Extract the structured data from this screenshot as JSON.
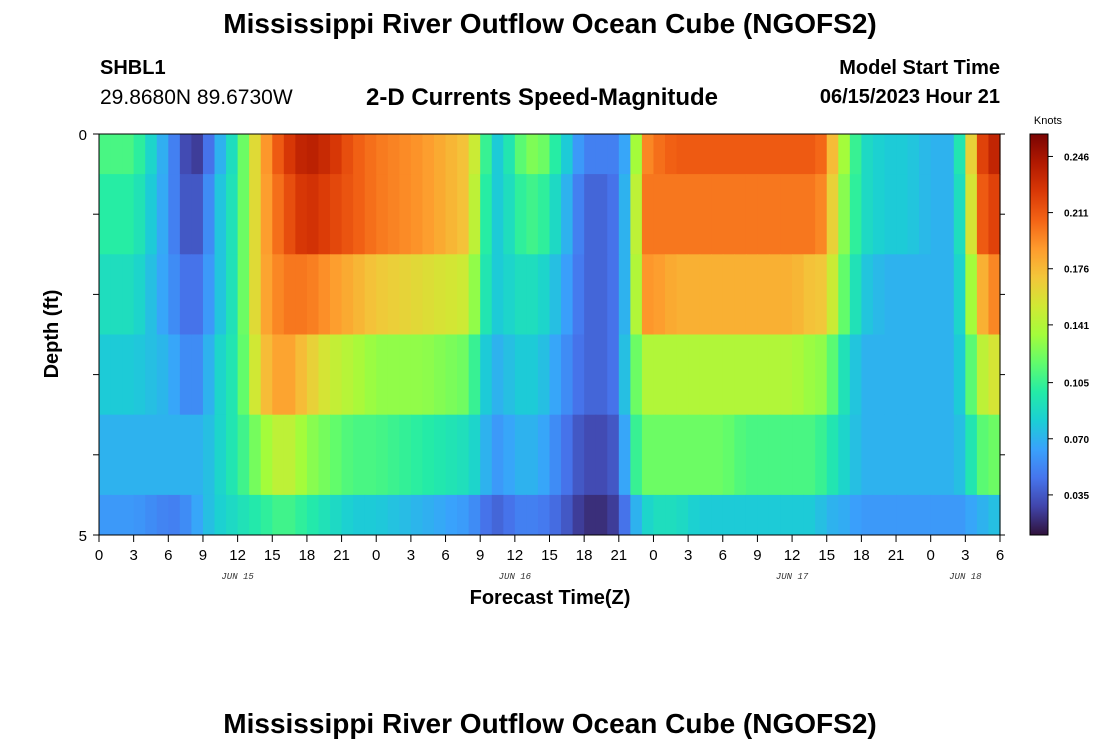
{
  "header": {
    "title": "Mississippi River Outflow Ocean Cube (NGOFS2)",
    "station_id": "SHBL1",
    "station_coords": "29.8680N  89.6730W",
    "subtitle": "2-D Currents Speed-Magnitude",
    "start_label": "Model Start Time",
    "start_value": "06/15/2023 Hour 21"
  },
  "footer": {
    "title": "Mississippi River Outflow Ocean Cube (NGOFS2)"
  },
  "chart_data": {
    "type": "heatmap",
    "xlabel": "Forecast Time(Z)",
    "ylabel": "Depth (ft)",
    "x_tick_labels": [
      "0",
      "3",
      "6",
      "9",
      "12",
      "15",
      "18",
      "21",
      "0",
      "3",
      "6",
      "9",
      "12",
      "15",
      "18",
      "21",
      "0",
      "3",
      "6",
      "9",
      "12",
      "15",
      "18",
      "21",
      "0",
      "3",
      "6"
    ],
    "date_labels": [
      {
        "text": "JUN 15",
        "hour": 12
      },
      {
        "text": "JUN 16",
        "hour": 36
      },
      {
        "text": "JUN 17",
        "hour": 60
      },
      {
        "text": "JUN 18",
        "hour": 75
      }
    ],
    "x_range_hours": [
      0,
      78
    ],
    "y_tick_labels": [
      "0",
      "5"
    ],
    "ylim": [
      0,
      5
    ],
    "colorbar": {
      "unit": "Knots",
      "range": [
        0.01,
        0.26
      ],
      "tick_labels": [
        "0.246",
        "0.211",
        "0.176",
        "0.141",
        "0.105",
        "0.070",
        "0.035"
      ],
      "tick_values": [
        0.246,
        0.211,
        0.176,
        0.141,
        0.105,
        0.07,
        0.035
      ],
      "colormap": [
        "#30123b",
        "#4145ab",
        "#4675ed",
        "#39a2fc",
        "#1bcfd4",
        "#24eca6",
        "#61fc6c",
        "#a4fc3b",
        "#d1e834",
        "#f3c63a",
        "#fe9b2d",
        "#f36315",
        "#d93806",
        "#b11901",
        "#7a0403"
      ]
    },
    "layer_depths_ft": [
      0,
      0.5,
      1.5,
      2.5,
      3.5,
      4.5,
      5
    ],
    "time_hours": [
      0,
      3,
      6,
      7,
      8,
      9,
      10,
      12,
      14,
      16,
      18,
      20,
      22,
      24,
      28,
      32,
      33,
      34,
      35,
      36,
      38,
      40,
      42,
      44,
      45,
      46,
      47,
      48,
      50,
      52,
      54,
      56,
      58,
      60,
      62,
      63,
      64,
      66,
      68,
      70,
      72,
      74,
      75,
      76,
      77,
      78
    ],
    "speed_knots": [
      [
        0.11,
        0.11,
        0.06,
        0.04,
        0.02,
        0.03,
        0.06,
        0.1,
        0.18,
        0.22,
        0.24,
        0.23,
        0.21,
        0.2,
        0.19,
        0.17,
        0.13,
        0.08,
        0.08,
        0.11,
        0.13,
        0.09,
        0.05,
        0.05,
        0.05,
        0.08,
        0.19,
        0.2,
        0.21,
        0.21,
        0.21,
        0.21,
        0.21,
        0.21,
        0.21,
        0.2,
        0.15,
        0.09,
        0.08,
        0.08,
        0.07,
        0.07,
        0.12,
        0.21,
        0.23,
        0.24
      ],
      [
        0.1,
        0.1,
        0.06,
        0.04,
        0.03,
        0.04,
        0.07,
        0.1,
        0.18,
        0.21,
        0.23,
        0.22,
        0.21,
        0.2,
        0.19,
        0.17,
        0.12,
        0.08,
        0.08,
        0.1,
        0.11,
        0.08,
        0.04,
        0.04,
        0.05,
        0.09,
        0.2,
        0.2,
        0.2,
        0.2,
        0.2,
        0.2,
        0.2,
        0.2,
        0.2,
        0.19,
        0.14,
        0.09,
        0.08,
        0.08,
        0.07,
        0.07,
        0.11,
        0.2,
        0.22,
        0.22
      ],
      [
        0.09,
        0.09,
        0.06,
        0.05,
        0.04,
        0.05,
        0.07,
        0.1,
        0.18,
        0.2,
        0.2,
        0.19,
        0.18,
        0.17,
        0.16,
        0.15,
        0.11,
        0.08,
        0.08,
        0.09,
        0.09,
        0.07,
        0.04,
        0.04,
        0.05,
        0.09,
        0.19,
        0.19,
        0.18,
        0.18,
        0.18,
        0.18,
        0.18,
        0.18,
        0.17,
        0.17,
        0.13,
        0.08,
        0.07,
        0.07,
        0.07,
        0.07,
        0.1,
        0.17,
        0.19,
        0.2
      ],
      [
        0.08,
        0.08,
        0.07,
        0.06,
        0.05,
        0.06,
        0.08,
        0.1,
        0.17,
        0.19,
        0.17,
        0.15,
        0.14,
        0.13,
        0.13,
        0.12,
        0.09,
        0.07,
        0.07,
        0.08,
        0.08,
        0.06,
        0.04,
        0.04,
        0.05,
        0.1,
        0.14,
        0.14,
        0.14,
        0.14,
        0.14,
        0.14,
        0.14,
        0.14,
        0.13,
        0.13,
        0.1,
        0.07,
        0.07,
        0.07,
        0.07,
        0.07,
        0.09,
        0.14,
        0.15,
        0.16
      ],
      [
        0.07,
        0.07,
        0.07,
        0.07,
        0.07,
        0.07,
        0.08,
        0.1,
        0.13,
        0.15,
        0.13,
        0.12,
        0.11,
        0.11,
        0.1,
        0.09,
        0.08,
        0.06,
        0.06,
        0.07,
        0.07,
        0.05,
        0.03,
        0.03,
        0.04,
        0.09,
        0.12,
        0.12,
        0.12,
        0.12,
        0.12,
        0.11,
        0.11,
        0.11,
        0.11,
        0.1,
        0.09,
        0.07,
        0.07,
        0.07,
        0.07,
        0.07,
        0.08,
        0.11,
        0.12,
        0.12
      ],
      [
        0.06,
        0.06,
        0.05,
        0.05,
        0.06,
        0.07,
        0.08,
        0.09,
        0.1,
        0.11,
        0.1,
        0.09,
        0.08,
        0.08,
        0.07,
        0.06,
        0.05,
        0.04,
        0.04,
        0.05,
        0.05,
        0.04,
        0.02,
        0.02,
        0.03,
        0.06,
        0.08,
        0.09,
        0.09,
        0.08,
        0.08,
        0.08,
        0.08,
        0.08,
        0.08,
        0.07,
        0.07,
        0.06,
        0.06,
        0.06,
        0.06,
        0.06,
        0.06,
        0.07,
        0.07,
        0.08
      ]
    ]
  }
}
